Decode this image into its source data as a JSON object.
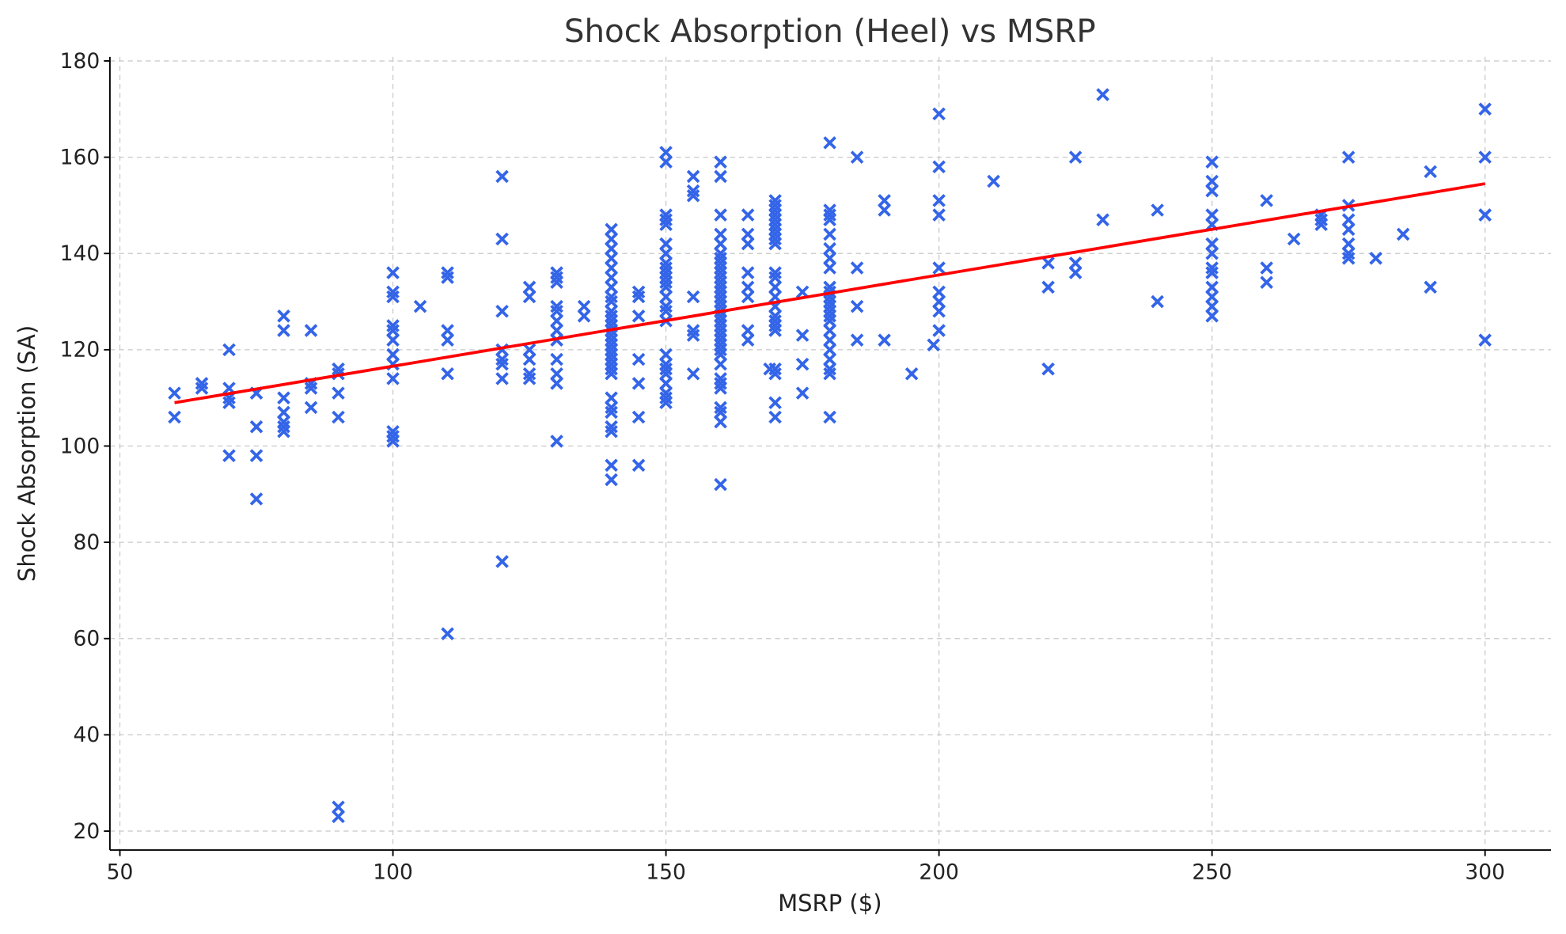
{
  "chart_data": {
    "type": "scatter",
    "title": "Shock Absorption (Heel) vs MSRP",
    "xlabel": "MSRP ($)",
    "ylabel": "Shock Absorption (SA)",
    "xlim": [
      47.5,
      312
    ],
    "ylim": [
      16,
      181
    ],
    "xticks": [
      50,
      100,
      150,
      200,
      250,
      300
    ],
    "yticks": [
      20,
      40,
      60,
      80,
      100,
      120,
      140,
      160,
      180
    ],
    "grid": true,
    "marker": "x",
    "colors": {
      "points": "#3465e8",
      "trend": "#ff0000"
    },
    "trend_line": {
      "x": [
        60,
        300
      ],
      "y": [
        109,
        154.5
      ]
    },
    "points_by_x": [
      {
        "x": 60,
        "y": [
          111,
          106
        ]
      },
      {
        "x": 65,
        "y": [
          113,
          112
        ]
      },
      {
        "x": 70,
        "y": [
          120,
          112,
          110,
          109,
          98
        ]
      },
      {
        "x": 75,
        "y": [
          111,
          111,
          104,
          98,
          89
        ]
      },
      {
        "x": 80,
        "y": [
          127,
          124,
          110,
          107,
          105,
          104,
          103
        ]
      },
      {
        "x": 85,
        "y": [
          124,
          113,
          112,
          108
        ]
      },
      {
        "x": 90,
        "y": [
          116,
          115,
          111,
          106,
          25,
          23
        ]
      },
      {
        "x": 100,
        "y": [
          136,
          132,
          131,
          125,
          124,
          122,
          119,
          117,
          114,
          103,
          102,
          101
        ]
      },
      {
        "x": 105,
        "y": [
          129
        ]
      },
      {
        "x": 110,
        "y": [
          136,
          135,
          124,
          122,
          115,
          61
        ]
      },
      {
        "x": 120,
        "y": [
          156,
          143,
          128,
          120,
          118,
          117,
          114,
          76
        ]
      },
      {
        "x": 125,
        "y": [
          133,
          131,
          120,
          118,
          115,
          114
        ]
      },
      {
        "x": 130,
        "y": [
          136,
          135,
          134,
          129,
          128,
          126,
          124,
          122,
          118,
          115,
          113,
          101
        ]
      },
      {
        "x": 135,
        "y": [
          129,
          127
        ]
      },
      {
        "x": 140,
        "y": [
          145,
          143,
          141,
          139,
          137,
          135,
          133,
          131,
          130,
          128,
          127,
          126,
          125,
          124,
          123,
          122,
          121,
          120,
          119,
          118,
          117,
          116,
          115,
          110,
          108,
          107,
          104,
          103,
          96,
          93
        ]
      },
      {
        "x": 145,
        "y": [
          132,
          131,
          127,
          118,
          113,
          106,
          96
        ]
      },
      {
        "x": 150,
        "y": [
          161,
          159,
          148,
          147,
          146,
          142,
          140,
          138,
          137,
          136,
          135,
          134,
          133,
          131,
          129,
          128,
          126,
          119,
          117,
          116,
          115,
          113,
          111,
          110,
          109
        ]
      },
      {
        "x": 155,
        "y": [
          156,
          153,
          152,
          131,
          124,
          123,
          115
        ]
      },
      {
        "x": 160,
        "y": [
          159,
          156,
          148,
          144,
          142,
          140,
          139,
          138,
          137,
          136,
          135,
          134,
          133,
          132,
          131,
          130,
          129,
          128,
          127,
          126,
          125,
          124,
          123,
          122,
          121,
          120,
          119,
          117,
          114,
          113,
          112,
          108,
          107,
          105,
          92
        ]
      },
      {
        "x": 165,
        "y": [
          148,
          144,
          142,
          136,
          133,
          131,
          124,
          122
        ]
      },
      {
        "x": 169,
        "y": [
          116
        ]
      },
      {
        "x": 170,
        "y": [
          151,
          150,
          149,
          148,
          147,
          146,
          145,
          144,
          143,
          142,
          136,
          135,
          133,
          131,
          129,
          127,
          126,
          125,
          124,
          116,
          115,
          109,
          106
        ]
      },
      {
        "x": 175,
        "y": [
          132,
          123,
          117,
          111
        ]
      },
      {
        "x": 180,
        "y": [
          163,
          149,
          148,
          147,
          144,
          141,
          139,
          137,
          133,
          132,
          131,
          130,
          129,
          128,
          127,
          126,
          124,
          122,
          120,
          118,
          116,
          115,
          106
        ]
      },
      {
        "x": 185,
        "y": [
          160,
          137,
          129,
          122
        ]
      },
      {
        "x": 190,
        "y": [
          151,
          149,
          122
        ]
      },
      {
        "x": 195,
        "y": [
          115
        ]
      },
      {
        "x": 199,
        "y": [
          121
        ]
      },
      {
        "x": 200,
        "y": [
          169,
          158,
          151,
          148,
          137,
          132,
          130,
          128,
          124
        ]
      },
      {
        "x": 210,
        "y": [
          155
        ]
      },
      {
        "x": 220,
        "y": [
          138,
          133,
          116
        ]
      },
      {
        "x": 225,
        "y": [
          160,
          138,
          136
        ]
      },
      {
        "x": 230,
        "y": [
          173,
          147
        ]
      },
      {
        "x": 240,
        "y": [
          149,
          130
        ]
      },
      {
        "x": 250,
        "y": [
          159,
          155,
          153,
          148,
          146,
          142,
          140,
          137,
          136,
          133,
          131,
          129,
          127
        ]
      },
      {
        "x": 260,
        "y": [
          151,
          137,
          134
        ]
      },
      {
        "x": 265,
        "y": [
          143
        ]
      },
      {
        "x": 270,
        "y": [
          148,
          147,
          146
        ]
      },
      {
        "x": 275,
        "y": [
          160,
          150,
          147,
          145,
          142,
          140,
          139
        ]
      },
      {
        "x": 280,
        "y": [
          139
        ]
      },
      {
        "x": 285,
        "y": [
          144
        ]
      },
      {
        "x": 290,
        "y": [
          157,
          133
        ]
      },
      {
        "x": 300,
        "y": [
          170,
          160,
          148,
          148,
          122
        ]
      }
    ]
  }
}
